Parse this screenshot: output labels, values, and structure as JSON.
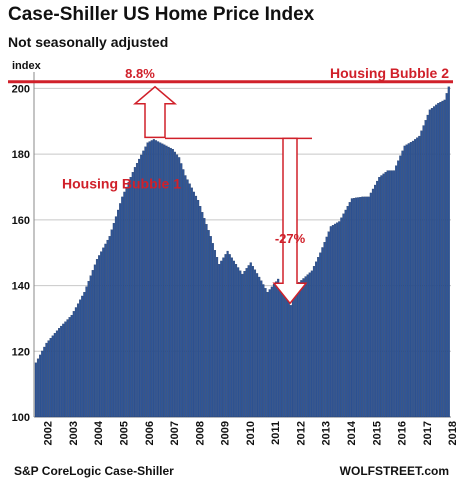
{
  "chart_data": {
    "type": "bar",
    "title": "Case-Shiller US Home Price Index",
    "subtitle": "Not seasonally adjusted",
    "ylabel": "index",
    "ylim": [
      100,
      205
    ],
    "yticks": [
      100,
      120,
      140,
      160,
      180,
      200
    ],
    "grid": true,
    "x_tick_labels": [
      "2002",
      "2003",
      "2004",
      "2005",
      "2006",
      "2007",
      "2008",
      "2009",
      "2010",
      "2011",
      "2012",
      "2013",
      "2014",
      "2015",
      "2016",
      "2017",
      "2018"
    ],
    "monthly_anchors": {
      "start": "2002-01",
      "end": "2018-05",
      "points": [
        [
          "2002-01",
          116.5
        ],
        [
          "2002-06",
          122.5
        ],
        [
          "2002-12",
          127.0
        ],
        [
          "2003-06",
          131.0
        ],
        [
          "2003-12",
          138.0
        ],
        [
          "2004-06",
          148.0
        ],
        [
          "2004-12",
          155.0
        ],
        [
          "2005-06",
          167.0
        ],
        [
          "2005-12",
          176.0
        ],
        [
          "2006-06",
          183.5
        ],
        [
          "2006-09",
          184.5
        ],
        [
          "2006-12",
          183.5
        ],
        [
          "2007-06",
          181.5
        ],
        [
          "2007-09",
          179.0
        ],
        [
          "2007-12",
          173.5
        ],
        [
          "2008-06",
          166.0
        ],
        [
          "2008-12",
          155.0
        ],
        [
          "2009-04",
          146.5
        ],
        [
          "2009-08",
          150.5
        ],
        [
          "2009-12",
          146.5
        ],
        [
          "2010-03",
          143.5
        ],
        [
          "2010-07",
          147.0
        ],
        [
          "2010-12",
          141.5
        ],
        [
          "2011-03",
          138.0
        ],
        [
          "2011-08",
          142.0
        ],
        [
          "2012-02",
          134.0
        ],
        [
          "2012-06",
          141.0
        ],
        [
          "2012-12",
          144.5
        ],
        [
          "2013-04",
          150.0
        ],
        [
          "2013-09",
          158.0
        ],
        [
          "2014-01",
          159.5
        ],
        [
          "2014-07",
          166.5
        ],
        [
          "2014-12",
          167.0
        ],
        [
          "2015-03",
          167.0
        ],
        [
          "2015-08",
          173.0
        ],
        [
          "2015-12",
          175.0
        ],
        [
          "2016-03",
          175.0
        ],
        [
          "2016-08",
          182.5
        ],
        [
          "2016-12",
          184.0
        ],
        [
          "2017-03",
          185.5
        ],
        [
          "2017-08",
          193.5
        ],
        [
          "2017-12",
          195.5
        ],
        [
          "2018-03",
          196.5
        ],
        [
          "2018-05",
          200.5
        ]
      ]
    },
    "annotations": {
      "bubble1_label": "Housing Bubble 1",
      "bubble2_label": "Housing Bubble 2",
      "pct_up": "8.8%",
      "pct_down": "-27%"
    }
  },
  "footer": {
    "source": "S&P CoreLogic Case-Shiller",
    "site": "WOLFSTREET.com"
  },
  "colors": {
    "bar_fill": "#2f5597",
    "bar_stroke": "#1f3864",
    "annotation": "#d0202a",
    "grid": "#c8c8c8"
  }
}
